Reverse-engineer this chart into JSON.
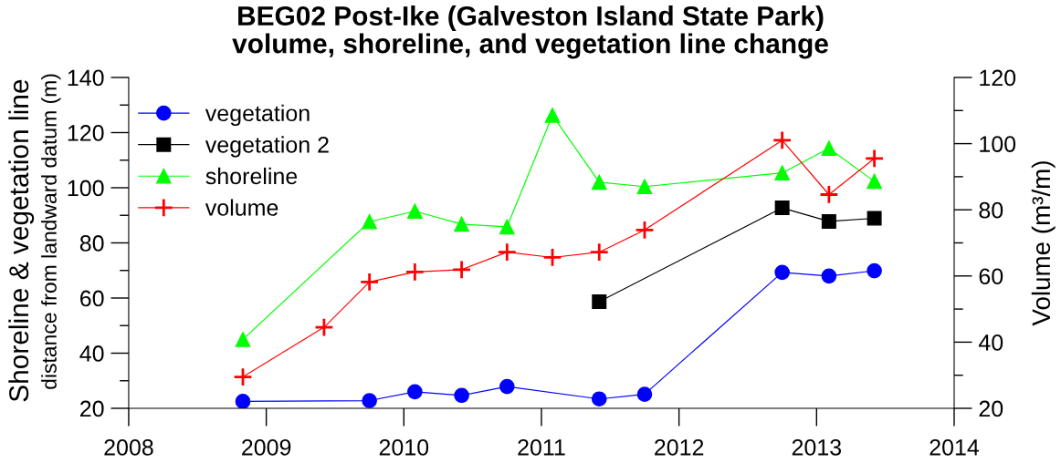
{
  "chart_data": {
    "type": "line",
    "title": "BEG02 Post-Ike (Galveston Island State Park)\nvolume, shoreline, and vegetation line change",
    "ylabel": "Shoreline & vegetation line\ndistance from landward datum (m)",
    "y2label": "Volume (m³/m)",
    "xlim": [
      2008,
      2014
    ],
    "xticks": [
      2008,
      2009,
      2010,
      2011,
      2012,
      2013,
      2014
    ],
    "ylim": [
      20,
      140
    ],
    "yticks": [
      20,
      {
        "value": 30,
        "label": null
      },
      40,
      {
        "value": 50,
        "label": null
      },
      60,
      {
        "value": 70,
        "label": null
      },
      80,
      {
        "value": 90,
        "label": null
      },
      100,
      {
        "value": 110,
        "label": null
      },
      120,
      {
        "value": 130,
        "label": null
      },
      140
    ],
    "y2lim": [
      20,
      120
    ],
    "y2ticks": [
      20,
      {
        "value": 30,
        "label": null
      },
      40,
      {
        "value": 50,
        "label": null
      },
      60,
      {
        "value": 70,
        "label": null
      },
      80,
      {
        "value": 90,
        "label": null
      },
      100,
      {
        "value": 110,
        "label": null
      },
      120
    ],
    "legend": "top left",
    "series": [
      {
        "name": "vegetation",
        "color": "#0000ff",
        "marker": "circle",
        "x": [
          2008.83,
          2009.75,
          2010.08,
          2010.42,
          2010.75,
          2011.42,
          2011.75,
          2012.75,
          2013.09,
          2013.42
        ],
        "values": [
          22.5,
          22.8,
          26.0,
          24.7,
          27.9,
          23.4,
          25.1,
          69.3,
          68.0,
          69.9
        ]
      },
      {
        "name": "vegetation 2",
        "color": "#000000",
        "marker": "square",
        "x": [
          2011.42,
          2012.75,
          2013.09,
          2013.42
        ],
        "values": [
          58.7,
          92.7,
          87.8,
          88.9
        ]
      },
      {
        "name": "shoreline",
        "color": "#00ff00",
        "marker": "triangle",
        "x": [
          2008.83,
          2009.75,
          2010.08,
          2010.42,
          2010.75,
          2011.08,
          2011.42,
          2011.75,
          2012.75,
          2013.09,
          2013.42
        ],
        "values": [
          45.0,
          87.7,
          91.5,
          86.8,
          85.8,
          126.3,
          102.0,
          100.4,
          105.4,
          114.3,
          102.3
        ]
      },
      {
        "name": "volume",
        "color": "#ff0000",
        "marker": "cross",
        "axis": "y2",
        "x": [
          2008.83,
          2009.42,
          2009.75,
          2010.08,
          2010.42,
          2010.75,
          2011.08,
          2011.42,
          2011.75,
          2012.75,
          2013.09,
          2013.42
        ],
        "values": [
          29.5,
          44.5,
          58.2,
          61.2,
          61.9,
          67.2,
          65.6,
          67.2,
          73.9,
          101.0,
          84.6,
          95.5
        ]
      }
    ]
  }
}
